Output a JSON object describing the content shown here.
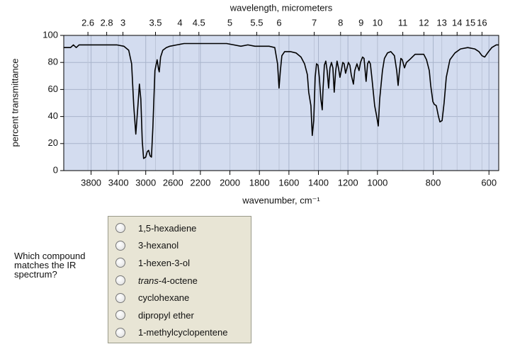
{
  "chart_data": {
    "type": "line",
    "title": "wavelength, micrometers",
    "xlabel": "wavenumber, cm⁻¹",
    "ylabel": "percent transmittance",
    "xlim": [
      4200,
      565
    ],
    "xticks": [
      3800,
      3400,
      3000,
      2600,
      2200,
      2000,
      1800,
      1600,
      1400,
      1200,
      1000,
      800,
      600
    ],
    "x2ticks": [
      2.6,
      2.8,
      3,
      3.5,
      4,
      4.5,
      5,
      5.5,
      6,
      7,
      8,
      9,
      10,
      11,
      12,
      13,
      14,
      15,
      16
    ],
    "ylim": [
      0,
      100
    ],
    "yticks": [
      0,
      20,
      40,
      60,
      80,
      100
    ],
    "grid": true,
    "color": "#000000",
    "x": [
      4200,
      4100,
      4059,
      4017,
      3976,
      3789,
      3685,
      3529,
      3425,
      3321,
      3249,
      3207,
      3176,
      3145,
      3114,
      3093,
      3072,
      3051,
      3031,
      3000,
      2979,
      2958,
      2937,
      2916,
      2896,
      2865,
      2833,
      2813,
      2802,
      2782,
      2750,
      2698,
      2647,
      2543,
      2439,
      2231,
      2118,
      2022,
      1974,
      1926,
      1878,
      1830,
      1734,
      1696,
      1677,
      1667,
      1658,
      1648,
      1629,
      1590,
      1552,
      1518,
      1494,
      1475,
      1466,
      1451,
      1442,
      1432,
      1422,
      1413,
      1403,
      1394,
      1384,
      1374,
      1370,
      1360,
      1350,
      1341,
      1331,
      1322,
      1312,
      1302,
      1293,
      1283,
      1274,
      1264,
      1254,
      1245,
      1235,
      1226,
      1216,
      1206,
      1197,
      1187,
      1178,
      1163,
      1154,
      1139,
      1125,
      1115,
      1101,
      1091,
      1077,
      1067,
      1058,
      1048,
      1038,
      1019,
      1005,
      997,
      992,
      982,
      975,
      964,
      952,
      939,
      931,
      926,
      921,
      916,
      911,
      903,
      896,
      885,
      875,
      865,
      850,
      834,
      824,
      814,
      809,
      801,
      796,
      789,
      781,
      776,
      768,
      761,
      753,
      740,
      722,
      702,
      676,
      651,
      636,
      625,
      615,
      605,
      590,
      574,
      565
    ],
    "values": [
      91,
      91,
      93,
      91,
      93,
      93,
      93,
      93,
      93,
      92,
      89,
      79,
      48,
      27,
      48,
      64,
      53,
      22,
      9,
      10,
      14,
      15,
      11,
      10,
      32,
      74,
      82,
      75,
      73,
      84,
      89,
      91,
      92,
      93,
      94,
      94,
      94,
      94,
      93,
      92,
      93,
      92,
      92,
      91,
      79,
      61,
      74,
      85,
      88,
      88,
      87,
      84,
      79,
      71,
      58,
      48,
      26,
      37,
      69,
      79,
      78,
      69,
      53,
      45,
      58,
      78,
      81,
      74,
      61,
      76,
      80,
      76,
      58,
      74,
      81,
      76,
      69,
      74,
      80,
      79,
      72,
      76,
      80,
      78,
      71,
      64,
      74,
      79,
      74,
      80,
      84,
      83,
      66,
      79,
      81,
      79,
      69,
      48,
      40,
      33,
      53,
      74,
      83,
      87,
      88,
      85,
      74,
      63,
      74,
      83,
      82,
      76,
      80,
      82,
      84,
      86,
      86,
      86,
      82,
      74,
      63,
      51,
      49,
      48,
      40,
      36,
      37,
      50,
      69,
      82,
      87,
      90,
      91,
      90,
      88,
      85,
      84,
      87,
      91,
      93,
      93
    ]
  },
  "question": {
    "prompt": "Which compound matches the IR spectrum?",
    "options": [
      "1,5-hexadiene",
      "3-hexanol",
      "1-hexen-3-ol",
      [
        "trans",
        "-4-octene"
      ],
      "cyclohexane",
      "dipropyl ether",
      "1-methylcyclopentene"
    ]
  }
}
